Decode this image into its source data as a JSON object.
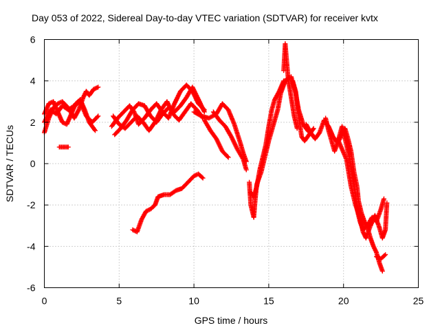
{
  "chart_data": {
    "type": "scatter",
    "title": "Day 053 of 2022, Sidereal Day-to-day VTEC variation (SDTVAR) for receiver kvtx",
    "xlabel": "GPS time / hours",
    "ylabel": "SDTVAR / TECUs",
    "xlim": [
      0,
      25
    ],
    "ylim": [
      -6,
      6
    ],
    "xticks": [
      0,
      5,
      10,
      15,
      20,
      25
    ],
    "yticks": [
      -6,
      -4,
      -2,
      0,
      2,
      4,
      6
    ],
    "x_tick_labels": [
      "0",
      "5",
      "10",
      "15",
      "20",
      "25"
    ],
    "y_tick_labels": [
      "-6",
      "-4",
      "-2",
      "0",
      "2",
      "4",
      "6"
    ],
    "grid": true,
    "marker": "+",
    "series": [
      {
        "name": "SDTVAR",
        "color": "#ff0000",
        "segments": [
          [
            [
              0.0,
              1.5
            ],
            [
              0.3,
              2.2
            ],
            [
              0.6,
              2.7
            ],
            [
              0.9,
              2.9
            ],
            [
              1.2,
              3.0
            ],
            [
              1.6,
              2.7
            ],
            [
              2.0,
              2.2
            ],
            [
              2.3,
              2.6
            ],
            [
              2.6,
              3.2
            ],
            [
              2.8,
              3.5
            ],
            [
              3.0,
              3.3
            ],
            [
              3.3,
              3.6
            ],
            [
              3.6,
              3.7
            ]
          ],
          [
            [
              0.0,
              2.4
            ],
            [
              0.3,
              2.9
            ],
            [
              0.6,
              3.0
            ],
            [
              0.9,
              2.5
            ],
            [
              1.2,
              2.0
            ],
            [
              1.5,
              1.9
            ],
            [
              1.8,
              2.4
            ],
            [
              2.1,
              2.9
            ],
            [
              2.4,
              3.1
            ],
            [
              2.7,
              2.6
            ],
            [
              3.0,
              2.0
            ],
            [
              3.4,
              1.6
            ]
          ],
          [
            [
              0.0,
              2.0
            ],
            [
              0.4,
              2.6
            ],
            [
              0.8,
              2.4
            ],
            [
              1.2,
              2.8
            ],
            [
              1.6,
              2.6
            ],
            [
              2.0,
              2.8
            ],
            [
              2.4,
              3.0
            ],
            [
              2.8,
              2.3
            ],
            [
              3.2,
              2.0
            ],
            [
              3.6,
              2.3
            ]
          ],
          [
            [
              1.0,
              0.8
            ],
            [
              1.3,
              0.8
            ],
            [
              1.6,
              0.8
            ]
          ],
          [
            [
              4.5,
              1.8
            ],
            [
              4.9,
              2.2
            ],
            [
              5.3,
              2.5
            ],
            [
              5.7,
              2.8
            ],
            [
              6.0,
              2.5
            ],
            [
              6.3,
              1.9
            ],
            [
              6.7,
              2.2
            ],
            [
              7.1,
              2.6
            ],
            [
              7.5,
              2.9
            ],
            [
              7.9,
              2.5
            ],
            [
              8.3,
              2.2
            ],
            [
              8.7,
              2.9
            ],
            [
              9.1,
              3.5
            ],
            [
              9.5,
              3.8
            ],
            [
              9.9,
              3.5
            ],
            [
              10.3,
              2.9
            ],
            [
              10.7,
              2.6
            ]
          ],
          [
            [
              4.6,
              2.3
            ],
            [
              5.0,
              1.9
            ],
            [
              5.4,
              1.7
            ],
            [
              5.8,
              2.0
            ],
            [
              6.2,
              2.3
            ],
            [
              6.6,
              2.0
            ],
            [
              7.0,
              1.6
            ],
            [
              7.4,
              2.0
            ],
            [
              7.8,
              2.6
            ],
            [
              8.2,
              3.0
            ],
            [
              8.6,
              2.4
            ],
            [
              9.0,
              2.1
            ],
            [
              9.4,
              2.5
            ],
            [
              9.8,
              2.9
            ],
            [
              10.2,
              2.6
            ],
            [
              10.6,
              2.2
            ]
          ],
          [
            [
              4.7,
              1.4
            ],
            [
              5.1,
              1.7
            ],
            [
              5.5,
              2.1
            ],
            [
              5.9,
              2.6
            ],
            [
              6.3,
              2.9
            ],
            [
              6.7,
              2.8
            ],
            [
              7.1,
              2.3
            ],
            [
              7.5,
              2.0
            ],
            [
              7.9,
              2.4
            ],
            [
              8.3,
              2.7
            ],
            [
              8.7,
              2.5
            ],
            [
              9.1,
              2.8
            ],
            [
              9.5,
              3.2
            ],
            [
              9.9,
              3.7
            ],
            [
              10.3,
              3.1
            ],
            [
              10.7,
              2.5
            ]
          ],
          [
            [
              10.0,
              2.5
            ],
            [
              10.5,
              2.3
            ],
            [
              11.0,
              2.2
            ],
            [
              11.5,
              2.4
            ],
            [
              11.9,
              2.9
            ],
            [
              12.3,
              2.6
            ],
            [
              12.7,
              1.9
            ],
            [
              13.1,
              1.0
            ],
            [
              13.3,
              0.5
            ],
            [
              13.5,
              0.1
            ]
          ],
          [
            [
              10.7,
              2.1
            ],
            [
              11.1,
              1.6
            ],
            [
              11.5,
              1.2
            ],
            [
              11.9,
              0.6
            ],
            [
              12.3,
              0.3
            ]
          ],
          [
            [
              11.3,
              2.5
            ],
            [
              11.7,
              2.1
            ],
            [
              12.1,
              1.8
            ],
            [
              12.5,
              1.3
            ],
            [
              12.9,
              0.7
            ],
            [
              13.3,
              0.2
            ],
            [
              13.5,
              -0.3
            ]
          ],
          [
            [
              13.7,
              -0.9
            ],
            [
              13.8,
              -2.0
            ],
            [
              14.0,
              -2.6
            ],
            [
              14.1,
              -1.7
            ],
            [
              14.2,
              -1.0
            ],
            [
              14.5,
              -0.4
            ],
            [
              14.8,
              0.5
            ],
            [
              15.0,
              1.1
            ],
            [
              15.2,
              1.6
            ],
            [
              15.4,
              2.1
            ],
            [
              15.6,
              2.6
            ],
            [
              15.8,
              3.4
            ],
            [
              16.0,
              3.8
            ],
            [
              16.2,
              4.1
            ],
            [
              16.5,
              4.2
            ],
            [
              16.8,
              3.4
            ],
            [
              17.0,
              2.6
            ],
            [
              17.3,
              1.9
            ],
            [
              17.6,
              1.6
            ],
            [
              17.9,
              1.4
            ]
          ],
          [
            [
              13.8,
              -1.4
            ],
            [
              14.0,
              -1.6
            ],
            [
              14.2,
              -1.1
            ],
            [
              14.4,
              -0.3
            ],
            [
              14.6,
              0.3
            ],
            [
              14.8,
              0.9
            ],
            [
              15.0,
              1.8
            ],
            [
              15.2,
              2.6
            ],
            [
              15.4,
              3.1
            ],
            [
              15.7,
              3.5
            ],
            [
              16.0,
              4.0
            ]
          ],
          [
            [
              16.0,
              4.5
            ],
            [
              16.1,
              5.8
            ],
            [
              16.3,
              4.1
            ],
            [
              16.5,
              3.2
            ],
            [
              16.7,
              2.3
            ],
            [
              16.9,
              1.7
            ]
          ],
          [
            [
              16.6,
              4.0
            ],
            [
              16.8,
              3.5
            ],
            [
              17.0,
              2.3
            ],
            [
              17.2,
              1.3
            ],
            [
              17.4,
              1.1
            ],
            [
              17.7,
              1.4
            ],
            [
              18.0,
              1.7
            ]
          ],
          [
            [
              17.5,
              1.9
            ],
            [
              17.8,
              1.5
            ],
            [
              18.1,
              1.2
            ],
            [
              18.4,
              1.5
            ],
            [
              18.7,
              2.1
            ],
            [
              19.0,
              1.8
            ],
            [
              19.3,
              1.3
            ],
            [
              19.6,
              1.0
            ],
            [
              19.9,
              1.4
            ],
            [
              20.1,
              1.7
            ],
            [
              20.3,
              1.2
            ],
            [
              20.5,
              0.6
            ],
            [
              20.7,
              -0.4
            ],
            [
              20.9,
              -1.1
            ],
            [
              21.0,
              -1.8
            ],
            [
              21.2,
              -2.4
            ],
            [
              21.4,
              -2.8
            ],
            [
              21.6,
              -3.1
            ],
            [
              21.8,
              -3.6
            ],
            [
              22.0,
              -4.0
            ],
            [
              22.2,
              -4.3
            ],
            [
              22.4,
              -4.8
            ],
            [
              22.6,
              -5.2
            ]
          ],
          [
            [
              18.8,
              2.2
            ],
            [
              19.0,
              1.6
            ],
            [
              19.2,
              1.1
            ],
            [
              19.4,
              0.6
            ],
            [
              19.6,
              1.0
            ],
            [
              19.9,
              1.8
            ],
            [
              20.2,
              0.9
            ],
            [
              20.4,
              0.3
            ],
            [
              20.6,
              -0.6
            ],
            [
              20.8,
              -1.5
            ],
            [
              20.9,
              -2.2
            ],
            [
              21.1,
              -2.8
            ],
            [
              21.3,
              -3.2
            ],
            [
              21.6,
              -3.0
            ],
            [
              21.9,
              -2.6
            ],
            [
              22.2,
              -2.8
            ],
            [
              22.5,
              -2.2
            ],
            [
              22.7,
              -1.7
            ]
          ],
          [
            [
              19.6,
              1.2
            ],
            [
              19.9,
              0.7
            ],
            [
              20.2,
              0.2
            ],
            [
              20.5,
              -1.1
            ],
            [
              20.8,
              -2.0
            ],
            [
              21.1,
              -2.6
            ],
            [
              21.3,
              -3.3
            ],
            [
              21.5,
              -3.6
            ],
            [
              21.8,
              -3.0
            ],
            [
              22.1,
              -2.5
            ],
            [
              22.4,
              -3.1
            ],
            [
              22.6,
              -3.6
            ],
            [
              22.8,
              -3.2
            ],
            [
              22.9,
              -1.9
            ]
          ],
          [
            [
              22.2,
              -4.5
            ],
            [
              22.5,
              -4.6
            ],
            [
              22.8,
              -4.4
            ]
          ],
          [
            [
              5.9,
              -3.2
            ],
            [
              6.2,
              -3.3
            ],
            [
              6.5,
              -2.7
            ],
            [
              6.8,
              -2.3
            ],
            [
              7.1,
              -2.2
            ],
            [
              7.4,
              -2.0
            ],
            [
              7.6,
              -1.6
            ],
            [
              8.0,
              -1.5
            ],
            [
              8.4,
              -1.5
            ],
            [
              8.8,
              -1.3
            ],
            [
              9.2,
              -1.2
            ],
            [
              9.6,
              -0.9
            ],
            [
              10.0,
              -0.6
            ],
            [
              10.3,
              -0.5
            ],
            [
              10.6,
              -0.7
            ]
          ]
        ]
      }
    ]
  }
}
